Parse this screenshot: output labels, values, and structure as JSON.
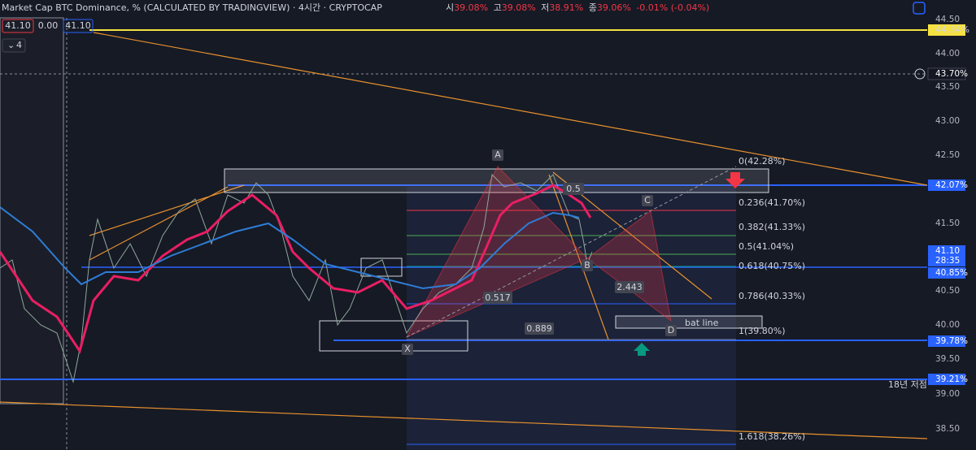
{
  "header": {
    "title": "Market Cap BTC Dominance, % (CALCULATED BY TRADINGVIEW) · 4시간 · CRYPTOCAP",
    "ohlc": [
      {
        "label": "시",
        "value": "39.08%"
      },
      {
        "label": "고",
        "value": "39.08%"
      },
      {
        "label": "저",
        "value": "38.91%"
      },
      {
        "label": "종",
        "value": "39.06%"
      }
    ],
    "change": "-0.01% (-0.04%)"
  },
  "toolbar": {
    "sell": "41.10",
    "spread": "0.00",
    "buy": "41.10",
    "indicators": "4"
  },
  "price_axis": {
    "ticks": [
      "44.50",
      "44.00",
      "43.50",
      "43.00",
      "42.50",
      "41.50",
      "40.50",
      "40.00",
      "39.50",
      "39.00",
      "38.50"
    ],
    "badges": {
      "level_4434": "44.34%",
      "level_4370": "43.70%",
      "level_4207": "42.07%",
      "last_price": "41.10",
      "countdown": "28:35",
      "level_4085": "40.85%",
      "level_3978": "39.78%",
      "level_3921": "39.21%"
    }
  },
  "fib_labels": [
    "0(42.28%)",
    "0.236(41.70%)",
    "0.382(41.33%)",
    "0.5(41.04%)",
    "0.618(40.75%)",
    "0.786(40.33%)",
    "1(39.80%)",
    "1.618(38.26%)"
  ],
  "pattern": {
    "points": [
      "X",
      "A",
      "B",
      "C",
      "D"
    ],
    "ratios": [
      "0.5",
      "0.517",
      "2.443",
      "0.889"
    ],
    "box_label": "bat line"
  },
  "annotations": {
    "low_2018": "18년 저점"
  }
}
